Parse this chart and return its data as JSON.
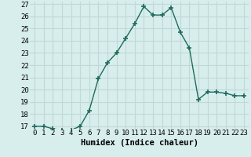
{
  "x": [
    0,
    1,
    2,
    3,
    4,
    5,
    6,
    7,
    8,
    9,
    10,
    11,
    12,
    13,
    14,
    15,
    16,
    17,
    18,
    19,
    20,
    21,
    22,
    23
  ],
  "y": [
    17.0,
    17.0,
    16.8,
    16.7,
    16.7,
    17.0,
    18.3,
    20.9,
    22.2,
    23.0,
    24.2,
    25.4,
    26.8,
    26.1,
    26.1,
    26.7,
    24.7,
    23.4,
    19.2,
    19.8,
    19.8,
    19.7,
    19.5,
    19.5
  ],
  "xlabel": "Humidex (Indice chaleur)",
  "ylim": [
    17,
    27
  ],
  "xlim": [
    -0.5,
    23.5
  ],
  "yticks": [
    17,
    18,
    19,
    20,
    21,
    22,
    23,
    24,
    25,
    26,
    27
  ],
  "xticks": [
    0,
    1,
    2,
    3,
    4,
    5,
    6,
    7,
    8,
    9,
    10,
    11,
    12,
    13,
    14,
    15,
    16,
    17,
    18,
    19,
    20,
    21,
    22,
    23
  ],
  "line_color": "#1e6b5e",
  "marker_color": "#1e6b5e",
  "bg_color": "#d8eeed",
  "grid_color": "#c0d8d8",
  "label_fontsize": 7.5,
  "tick_fontsize": 6.5
}
